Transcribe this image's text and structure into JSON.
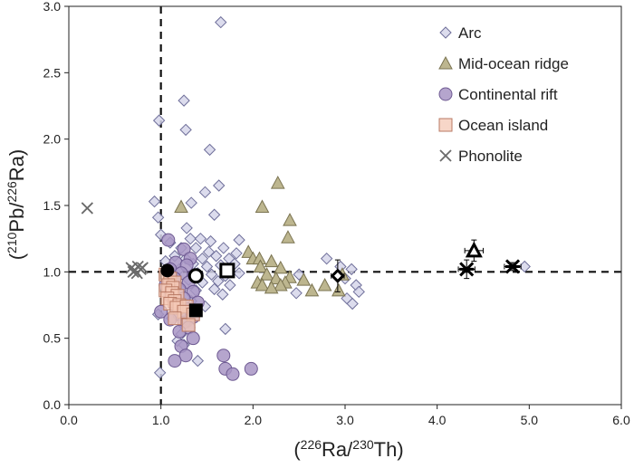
{
  "chart_data": {
    "type": "scatter",
    "xlabel": {
      "open": "(",
      "sup1": "226",
      "mid": "Ra/",
      "sup2": "230",
      "close": "Th)"
    },
    "ylabel": {
      "open": "(",
      "sup1": "210",
      "mid": "Pb/",
      "sup2": "226",
      "close": "Ra)"
    },
    "xlim": [
      0,
      6
    ],
    "ylim": [
      0,
      3
    ],
    "xticks": [
      "0.0",
      "1.0",
      "2.0",
      "3.0",
      "4.0",
      "5.0",
      "6.0"
    ],
    "yticks": [
      "0.0",
      "0.5",
      "1.0",
      "1.5",
      "2.0",
      "2.5",
      "3.0"
    ],
    "reference_lines": {
      "x": 1.0,
      "y": 1.0
    },
    "legend_position": "top-right",
    "colors": {
      "arc_fill": "#d6d6ea",
      "arc_stroke": "#6f6f9a",
      "mor_fill": "#bdb68f",
      "mor_stroke": "#7a7350",
      "rift_fill": "#a895c4",
      "rift_stroke": "#6e5a92",
      "island_fill": "#f4c8b6",
      "island_stroke": "#b97a64",
      "phono_stroke": "#6a6a6a"
    },
    "series": [
      {
        "name": "Arc",
        "marker": "diamond",
        "points": [
          [
            1.65,
            2.88
          ],
          [
            1.25,
            2.29
          ],
          [
            1.27,
            2.07
          ],
          [
            0.98,
            2.14
          ],
          [
            1.53,
            1.92
          ],
          [
            1.63,
            1.65
          ],
          [
            1.48,
            1.6
          ],
          [
            0.93,
            1.53
          ],
          [
            1.33,
            1.52
          ],
          [
            1.58,
            1.43
          ],
          [
            0.97,
            1.41
          ],
          [
            1.28,
            1.33
          ],
          [
            1.0,
            1.28
          ],
          [
            1.32,
            1.25
          ],
          [
            1.43,
            1.25
          ],
          [
            1.54,
            1.23
          ],
          [
            1.85,
            1.24
          ],
          [
            1.1,
            1.22
          ],
          [
            1.22,
            1.18
          ],
          [
            1.38,
            1.18
          ],
          [
            1.52,
            1.15
          ],
          [
            1.68,
            1.18
          ],
          [
            1.82,
            1.14
          ],
          [
            1.15,
            1.12
          ],
          [
            1.27,
            1.1
          ],
          [
            1.45,
            1.1
          ],
          [
            1.6,
            1.12
          ],
          [
            1.74,
            1.1
          ],
          [
            1.05,
            1.08
          ],
          [
            1.35,
            1.06
          ],
          [
            1.5,
            1.04
          ],
          [
            1.65,
            1.05
          ],
          [
            1.8,
            1.06
          ],
          [
            2.8,
            1.1
          ],
          [
            2.95,
            1.04
          ],
          [
            3.07,
            1.02
          ],
          [
            1.2,
            1.02
          ],
          [
            1.4,
            0.99
          ],
          [
            1.55,
            0.98
          ],
          [
            1.7,
            0.97
          ],
          [
            1.85,
            0.99
          ],
          [
            2.5,
            0.98
          ],
          [
            1.1,
            0.96
          ],
          [
            1.3,
            0.94
          ],
          [
            1.45,
            0.92
          ],
          [
            1.62,
            0.93
          ],
          [
            1.75,
            0.9
          ],
          [
            3.0,
            0.95
          ],
          [
            3.12,
            0.9
          ],
          [
            1.22,
            0.88
          ],
          [
            1.38,
            0.86
          ],
          [
            1.58,
            0.87
          ],
          [
            1.67,
            0.83
          ],
          [
            2.47,
            0.84
          ],
          [
            3.15,
            0.85
          ],
          [
            3.02,
            0.8
          ],
          [
            3.08,
            0.76
          ],
          [
            1.15,
            0.8
          ],
          [
            1.33,
            0.78
          ],
          [
            1.48,
            0.74
          ],
          [
            0.97,
            0.68
          ],
          [
            1.12,
            0.65
          ],
          [
            1.3,
            0.62
          ],
          [
            1.7,
            0.57
          ],
          [
            1.22,
            0.53
          ],
          [
            1.18,
            0.48
          ],
          [
            1.25,
            0.45
          ],
          [
            1.4,
            0.33
          ],
          [
            0.99,
            0.24
          ],
          [
            4.95,
            1.04
          ]
        ]
      },
      {
        "name": "Mid-ocean ridge",
        "marker": "triangle",
        "points": [
          [
            2.27,
            1.67
          ],
          [
            1.22,
            1.49
          ],
          [
            2.1,
            1.49
          ],
          [
            2.4,
            1.39
          ],
          [
            2.38,
            1.26
          ],
          [
            1.95,
            1.15
          ],
          [
            2.0,
            1.1
          ],
          [
            2.07,
            1.1
          ],
          [
            2.2,
            1.08
          ],
          [
            2.08,
            1.04
          ],
          [
            2.3,
            1.03
          ],
          [
            2.15,
            0.98
          ],
          [
            2.4,
            0.96
          ],
          [
            2.25,
            0.95
          ],
          [
            2.55,
            0.94
          ],
          [
            2.05,
            0.92
          ],
          [
            2.35,
            0.92
          ],
          [
            2.1,
            0.9
          ],
          [
            2.3,
            0.9
          ],
          [
            2.2,
            0.88
          ],
          [
            2.78,
            0.9
          ],
          [
            2.64,
            0.86
          ],
          [
            2.93,
            0.86
          ],
          [
            2.97,
            0.98
          ]
        ]
      },
      {
        "name": "Continental rift",
        "marker": "circle",
        "points": [
          [
            1.08,
            1.24
          ],
          [
            1.25,
            1.17
          ],
          [
            1.32,
            1.1
          ],
          [
            1.16,
            1.07
          ],
          [
            1.28,
            1.05
          ],
          [
            1.1,
            1.02
          ],
          [
            1.22,
            0.99
          ],
          [
            1.36,
            0.97
          ],
          [
            1.15,
            0.95
          ],
          [
            1.3,
            0.92
          ],
          [
            1.05,
            0.9
          ],
          [
            1.2,
            0.87
          ],
          [
            1.35,
            0.85
          ],
          [
            1.1,
            0.82
          ],
          [
            1.25,
            0.8
          ],
          [
            1.4,
            0.77
          ],
          [
            1.15,
            0.75
          ],
          [
            1.3,
            0.72
          ],
          [
            1.0,
            0.7
          ],
          [
            1.2,
            0.68
          ],
          [
            1.35,
            0.66
          ],
          [
            1.1,
            0.64
          ],
          [
            1.25,
            0.62
          ],
          [
            1.3,
            0.58
          ],
          [
            1.2,
            0.55
          ],
          [
            1.35,
            0.5
          ],
          [
            1.22,
            0.44
          ],
          [
            1.27,
            0.37
          ],
          [
            1.68,
            0.37
          ],
          [
            1.7,
            0.27
          ],
          [
            1.78,
            0.23
          ],
          [
            1.98,
            0.27
          ],
          [
            1.15,
            0.33
          ]
        ]
      },
      {
        "name": "Ocean island",
        "marker": "square",
        "points": [
          [
            1.05,
            0.98
          ],
          [
            1.1,
            0.95
          ],
          [
            1.15,
            0.92
          ],
          [
            1.08,
            0.9
          ],
          [
            1.13,
            0.88
          ],
          [
            1.05,
            0.86
          ],
          [
            1.12,
            0.84
          ],
          [
            1.18,
            0.82
          ],
          [
            1.07,
            0.8
          ],
          [
            1.15,
            0.78
          ],
          [
            1.1,
            0.76
          ],
          [
            1.2,
            0.75
          ],
          [
            1.17,
            0.73
          ],
          [
            1.28,
            0.74
          ],
          [
            1.25,
            0.7
          ],
          [
            1.35,
            0.68
          ],
          [
            1.15,
            0.65
          ],
          [
            1.3,
            0.6
          ]
        ]
      },
      {
        "name": "Phonolite",
        "marker": "x",
        "points": [
          [
            0.2,
            1.48
          ],
          [
            0.68,
            1.03
          ],
          [
            0.72,
            1.01
          ],
          [
            0.75,
            1.04
          ],
          [
            0.78,
            1.02
          ],
          [
            0.7,
            1.0
          ],
          [
            0.8,
            1.03
          ],
          [
            0.74,
            0.99
          ]
        ]
      }
    ],
    "highlighted_means": [
      {
        "marker": "circle",
        "x": 1.07,
        "y": 1.01
      },
      {
        "marker": "open-circle",
        "x": 1.38,
        "y": 0.97,
        "xerr": 0.06,
        "yerr": 0.03
      },
      {
        "marker": "open-square",
        "x": 1.72,
        "y": 1.01,
        "xerr": 0.06,
        "yerr": 0.03
      },
      {
        "marker": "square",
        "x": 1.38,
        "y": 0.71
      },
      {
        "marker": "open-diamond",
        "x": 2.92,
        "y": 0.97,
        "xerr": 0.07,
        "yerr": 0.12
      },
      {
        "marker": "open-triangle",
        "x": 4.4,
        "y": 1.16,
        "xerr": 0.1,
        "yerr": 0.08
      },
      {
        "marker": "asterisk",
        "x": 4.32,
        "y": 1.02,
        "xerr": 0.09,
        "yerr": 0.07
      },
      {
        "marker": "asterisk",
        "x": 4.82,
        "y": 1.04,
        "xerr": 0.09,
        "yerr": 0.03
      }
    ]
  }
}
